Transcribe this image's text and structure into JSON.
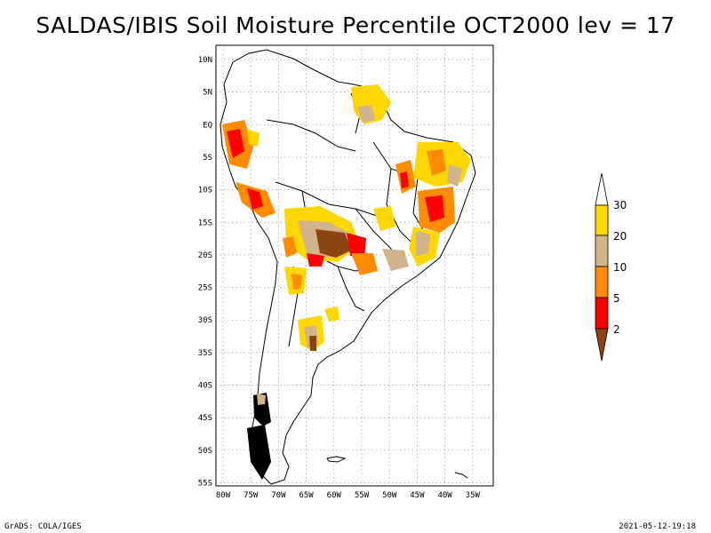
{
  "title": "SALDAS/IBIS Soil Moisture Percentile OCT2000 lev = 17",
  "lat_labels": [
    "10N",
    "5N",
    "EQ",
    "5S",
    "10S",
    "15S",
    "20S",
    "25S",
    "30S",
    "35S",
    "40S",
    "45S",
    "50S",
    "55S"
  ],
  "lon_labels": [
    "80W",
    "75W",
    "70W",
    "65W",
    "60W",
    "55W",
    "50W",
    "45W",
    "40W",
    "35W"
  ],
  "colorbar": {
    "labels": [
      "30",
      "20",
      "10",
      "5",
      "2"
    ],
    "colors": {
      "above_30": "#ffffff",
      "c20_30": "#ffd700",
      "c10_20": "#d2b48c",
      "c5_10": "#ff8c00",
      "c2_5": "#ff0000",
      "below_2": "#8b4513"
    }
  },
  "footer_left": "GrADS: COLA/IGES",
  "footer_right": "2021-05-12-19:18"
}
